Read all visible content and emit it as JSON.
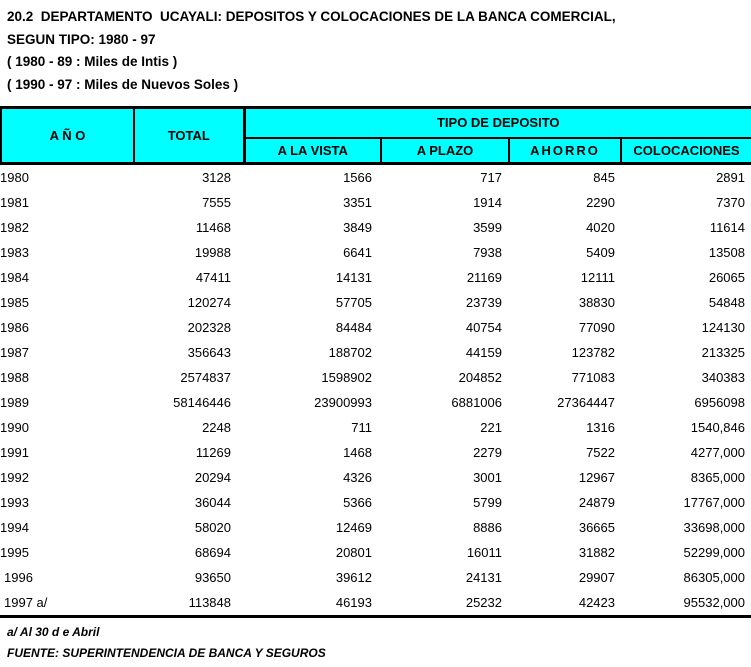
{
  "title": {
    "line1": "20.2  DEPARTAMENTO  UCAYALI: DEPOSITOS Y COLOCACIONES DE LA BANCA COMERCIAL,",
    "line2": "SEGUN TIPO: 1980 - 97",
    "line3": "( 1980 - 89 : Miles de Intis )",
    "line4": "( 1990 - 97 : Miles de Nuevos Soles )"
  },
  "table": {
    "headers": {
      "year": "A Ñ O",
      "total": "TOTAL",
      "group": "TIPO DE DEPOSITO",
      "sub": [
        "A LA VISTA",
        "A PLAZO",
        "AHORRO",
        "COLOCACIONES"
      ]
    },
    "rows": [
      {
        "year": "1980",
        "total": "3128",
        "vista": "1566",
        "plazo": "717",
        "ahorro": "845",
        "coloc": "2891"
      },
      {
        "year": "1981",
        "total": "7555",
        "vista": "3351",
        "plazo": "1914",
        "ahorro": "2290",
        "coloc": "7370"
      },
      {
        "year": "1982",
        "total": "11468",
        "vista": "3849",
        "plazo": "3599",
        "ahorro": "4020",
        "coloc": "11614"
      },
      {
        "year": "1983",
        "total": "19988",
        "vista": "6641",
        "plazo": "7938",
        "ahorro": "5409",
        "coloc": "13508"
      },
      {
        "year": "1984",
        "total": "47411",
        "vista": "14131",
        "plazo": "21169",
        "ahorro": "12111",
        "coloc": "26065"
      },
      {
        "year": "1985",
        "total": "120274",
        "vista": "57705",
        "plazo": "23739",
        "ahorro": "38830",
        "coloc": "54848"
      },
      {
        "year": "1986",
        "total": "202328",
        "vista": "84484",
        "plazo": "40754",
        "ahorro": "77090",
        "coloc": "124130"
      },
      {
        "year": "1987",
        "total": "356643",
        "vista": "188702",
        "plazo": "44159",
        "ahorro": "123782",
        "coloc": "213325"
      },
      {
        "year": "1988",
        "total": "2574837",
        "vista": "1598902",
        "plazo": "204852",
        "ahorro": "771083",
        "coloc": "340383"
      },
      {
        "year": "1989",
        "total": "58146446",
        "vista": "23900993",
        "plazo": "6881006",
        "ahorro": "27364447",
        "coloc": "6956098"
      },
      {
        "year": "1990",
        "total": "2248",
        "vista": "711",
        "plazo": "221",
        "ahorro": "1316",
        "coloc": "1540,846"
      },
      {
        "year": "1991",
        "total": "11269",
        "vista": "1468",
        "plazo": "2279",
        "ahorro": "7522",
        "coloc": "4277,000"
      },
      {
        "year": "1992",
        "total": "20294",
        "vista": "4326",
        "plazo": "3001",
        "ahorro": "12967",
        "coloc": "8365,000"
      },
      {
        "year": "1993",
        "total": "36044",
        "vista": "5366",
        "plazo": "5799",
        "ahorro": "24879",
        "coloc": "17767,000"
      },
      {
        "year": "1994",
        "total": "58020",
        "vista": "12469",
        "plazo": "8886",
        "ahorro": "36665",
        "coloc": "33698,000"
      },
      {
        "year": "1995",
        "total": "68694",
        "vista": "20801",
        "plazo": "16011",
        "ahorro": "31882",
        "coloc": "52299,000"
      },
      {
        "year": "1996",
        "total": "93650",
        "vista": "39612",
        "plazo": "24131",
        "ahorro": "29907",
        "coloc": "86305,000"
      },
      {
        "year": "1997 a/",
        "total": "113848",
        "vista": "46193",
        "plazo": "25232",
        "ahorro": "42423",
        "coloc": "95532,000"
      }
    ]
  },
  "footer": {
    "note": "a/ Al 30 d e Abril",
    "source": "FUENTE: SUPERINTENDENCIA DE BANCA Y SEGUROS"
  },
  "colors": {
    "header_bg": "#00FFFF",
    "border": "#000000",
    "text": "#000000",
    "page_bg": "#FFFFFF"
  }
}
